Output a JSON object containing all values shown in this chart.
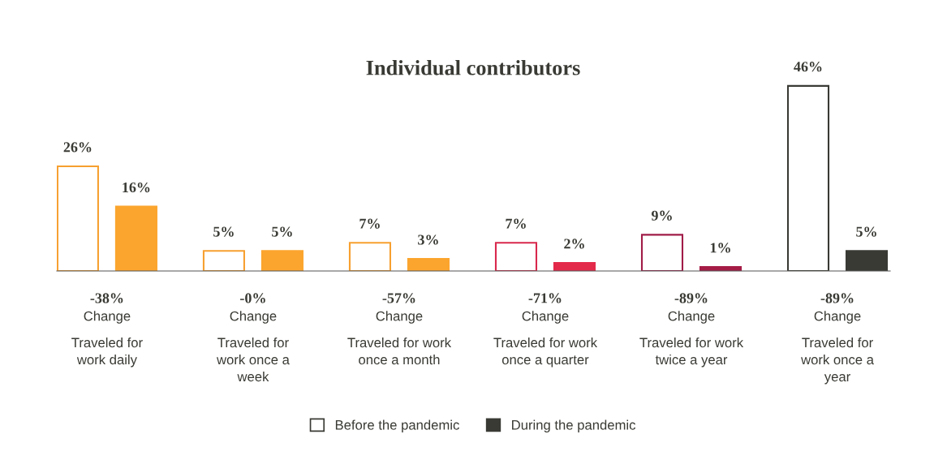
{
  "chart_data": {
    "type": "bar",
    "title": "Individual contributors",
    "categories": [
      "Traveled for\nwork daily",
      "Traveled for\nwork once a\nweek",
      "Traveled for work\nonce a month",
      "Traveled for work\nonce a quarter",
      "Traveled for work\ntwice a year",
      "Traveled for\nwork once a\nyear"
    ],
    "series": [
      {
        "name": "Before the pandemic",
        "color": "#ffffff",
        "colors": [
          "#f7a030",
          "#f7a030",
          "#f7a030",
          "#d8284c",
          "#a01c48",
          "#3a3a35"
        ],
        "values": [
          26,
          5,
          7,
          7,
          9,
          46
        ],
        "value_labels": [
          "26%",
          "5%",
          "7%",
          "7%",
          "9%",
          "46%"
        ]
      },
      {
        "name": "During the pandemic",
        "color": "#3a3a35",
        "colors": [
          "#fba52e",
          "#fba52e",
          "#fba52e",
          "#e32a4b",
          "#a51c47",
          "#3a3a35"
        ],
        "values": [
          16,
          5,
          3,
          2,
          1,
          5
        ],
        "value_labels": [
          "16%",
          "5%",
          "3%",
          "2%",
          "1%",
          "5%"
        ]
      }
    ],
    "annotations": [
      "-38%\nChange",
      "-0%\nChange",
      "-57%\nChange",
      "-71%\nChange",
      "-89%\nChange",
      "-89%\nChange"
    ],
    "legend": "bottom"
  }
}
